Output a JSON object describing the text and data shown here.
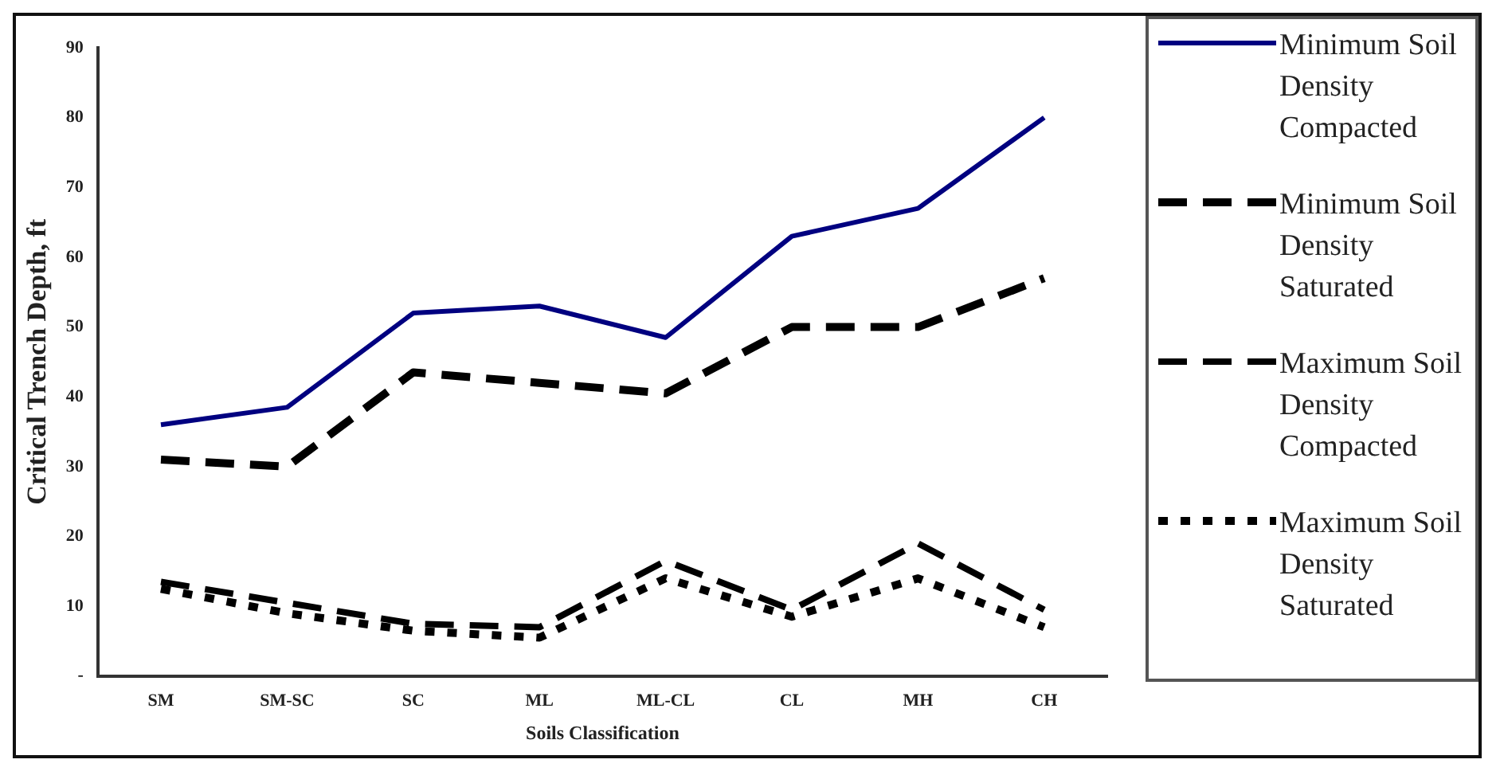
{
  "chart_data": {
    "type": "line",
    "xlabel": "Soils Classification",
    "ylabel": "Critical Trench Depth, ft",
    "categories": [
      "SM",
      "SM-SC",
      "SC",
      "ML",
      "ML-CL",
      "CL",
      "MH",
      "CH"
    ],
    "series": [
      {
        "name": "Minimum Soil Density Compacted",
        "color": "#000080",
        "line_style": "solid",
        "values": [
          36,
          38.5,
          52,
          53,
          48.5,
          63,
          67,
          80
        ]
      },
      {
        "name": "Minimum Soil Density Saturated",
        "color": "#000000",
        "line_style": "dashed",
        "values": [
          31,
          30,
          43.5,
          42,
          40.5,
          50,
          50,
          57
        ]
      },
      {
        "name": "Maximum Soil Density Compacted",
        "color": "#000000",
        "line_style": "dashed",
        "values": [
          13.5,
          10.5,
          7.5,
          7,
          16.5,
          9.5,
          19,
          9.5
        ]
      },
      {
        "name": "Maximum Soil Density Saturated",
        "color": "#000000",
        "line_style": "dotted",
        "values": [
          12.5,
          9,
          6.5,
          5.5,
          14,
          8.5,
          14,
          7
        ]
      }
    ],
    "ylim": [
      0,
      90
    ],
    "yticks": [
      {
        "value": 0,
        "label": "-"
      },
      10,
      20,
      30,
      40,
      50,
      60,
      70,
      80,
      90
    ],
    "grid": false,
    "legend": "right",
    "marker": "none"
  }
}
